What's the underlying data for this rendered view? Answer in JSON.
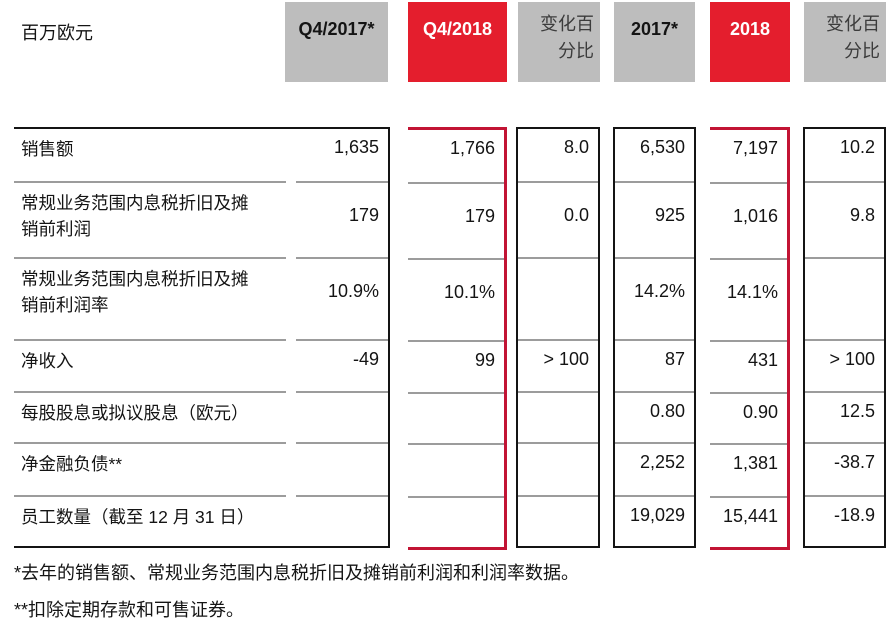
{
  "unit_label": "百万欧元",
  "header": {
    "q4_2017": "Q4/2017*",
    "q4_2018": "Q4/2018",
    "change_pct_quarter": "变化百\n分比",
    "fy_2017": "2017*",
    "fy_2018": "2018",
    "change_pct_year": "变化百\n分比"
  },
  "rows": [
    {
      "label": "销售额",
      "values": [
        "1,635",
        "1,766",
        "8.0",
        "6,530",
        "7,197",
        "10.2"
      ]
    },
    {
      "label": "常规业务范围内息税折旧及摊\n销前利润",
      "values": [
        "179",
        "179",
        "0.0",
        "925",
        "1,016",
        "9.8"
      ]
    },
    {
      "label": "常规业务范围内息税折旧及摊\n销前利润率",
      "values": [
        "10.9%",
        "10.1%",
        "",
        "14.2%",
        "14.1%",
        ""
      ]
    },
    {
      "label": "净收入",
      "values": [
        "-49",
        "99",
        "> 100",
        "87",
        "431",
        "> 100"
      ]
    },
    {
      "label": "每股股息或拟议股息（欧元）",
      "values": [
        "",
        "",
        "",
        "0.80",
        "0.90",
        "12.5"
      ]
    },
    {
      "label": "净金融负债**",
      "values": [
        "",
        "",
        "",
        "2,252",
        "1,381",
        "-38.7"
      ]
    },
    {
      "label": "员工数量（截至 12 月 31 日）",
      "values": [
        "",
        "",
        "",
        "19,029",
        "15,441",
        "-18.9"
      ]
    }
  ],
  "footnotes": [
    "*去年的销售额、常规业务范围内息税折旧及摊销前利润和利润率数据。",
    "**扣除定期存款和可售证券。"
  ],
  "colors": {
    "header_red": "#e41e2d",
    "border_red": "#c21434",
    "header_gray": "#bdbdbd",
    "separator_gray": "#9c9c9c",
    "line_black": "#141414"
  }
}
